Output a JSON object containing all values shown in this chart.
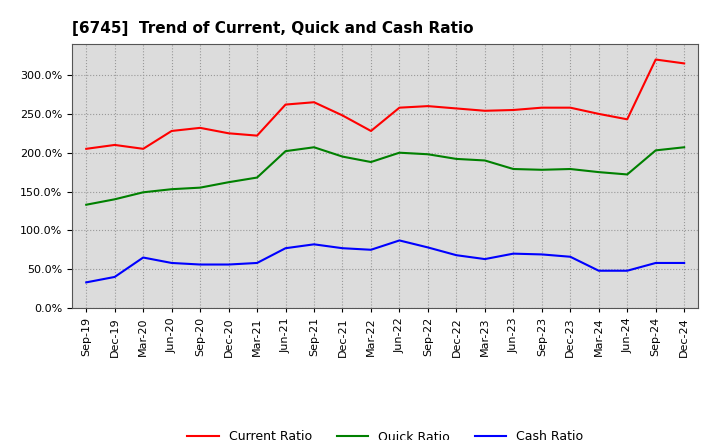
{
  "title": "[6745]  Trend of Current, Quick and Cash Ratio",
  "labels": [
    "Sep-19",
    "Dec-19",
    "Mar-20",
    "Jun-20",
    "Sep-20",
    "Dec-20",
    "Mar-21",
    "Jun-21",
    "Sep-21",
    "Dec-21",
    "Mar-22",
    "Jun-22",
    "Sep-22",
    "Dec-22",
    "Mar-23",
    "Jun-23",
    "Sep-23",
    "Dec-23",
    "Mar-24",
    "Jun-24",
    "Sep-24",
    "Dec-24"
  ],
  "current_ratio": [
    205,
    210,
    205,
    228,
    232,
    225,
    222,
    262,
    265,
    248,
    228,
    258,
    260,
    257,
    254,
    255,
    258,
    258,
    250,
    243,
    320,
    315
  ],
  "quick_ratio": [
    133,
    140,
    149,
    153,
    155,
    162,
    168,
    202,
    207,
    195,
    188,
    200,
    198,
    192,
    190,
    179,
    178,
    179,
    175,
    172,
    203,
    207
  ],
  "cash_ratio": [
    33,
    40,
    65,
    58,
    56,
    56,
    58,
    77,
    82,
    77,
    75,
    87,
    78,
    68,
    63,
    70,
    69,
    66,
    48,
    48,
    58,
    58
  ],
  "current_color": "#FF0000",
  "quick_color": "#008000",
  "cash_color": "#0000FF",
  "ylim": [
    0,
    340
  ],
  "yticks": [
    0,
    50,
    100,
    150,
    200,
    250,
    300
  ],
  "background_color": "#DCDCDC",
  "grid_color": "#999999",
  "title_fontsize": 11,
  "tick_fontsize": 8
}
